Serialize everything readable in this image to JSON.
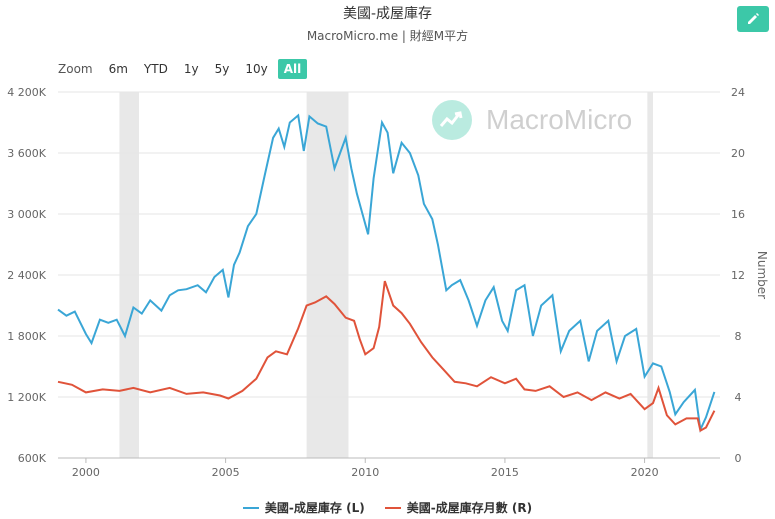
{
  "title": "美國-成屋庫存",
  "subtitle": "MacroMicro.me | 財經M平方",
  "watermark": "MacroMicro",
  "zoom": {
    "label": "Zoom",
    "buttons": [
      "6m",
      "YTD",
      "1y",
      "5y",
      "10y",
      "All"
    ],
    "active": "All"
  },
  "colors": {
    "left_series": "#3aa6d6",
    "right_series": "#e0533a",
    "accent": "#3cc8a8",
    "recession": "#e8e8e8"
  },
  "chart_data": {
    "type": "line",
    "title": "美國-成屋庫存",
    "left_axis": {
      "ticks": [
        "600K",
        "1 200K",
        "1 800K",
        "2 400K",
        "3 000K",
        "3 600K",
        "4 200K"
      ],
      "values": [
        600,
        1200,
        1800,
        2400,
        3000,
        3600,
        4200
      ],
      "range": [
        600,
        4200
      ],
      "unit": "K"
    },
    "right_axis": {
      "ticks": [
        "0",
        "4",
        "8",
        "12",
        "16",
        "20",
        "24"
      ],
      "values": [
        0,
        4,
        8,
        12,
        16,
        20,
        24
      ],
      "range": [
        0,
        24
      ],
      "label": "Number"
    },
    "x_axis": {
      "ticks": [
        "2000",
        "2005",
        "2010",
        "2015",
        "2020"
      ],
      "values": [
        2000,
        2005,
        2010,
        2015,
        2020
      ],
      "range": [
        1999,
        2022.7
      ]
    },
    "recessions": [
      [
        2001.2,
        2001.9
      ],
      [
        2007.9,
        2009.4
      ],
      [
        2020.1,
        2020.3
      ]
    ],
    "series": [
      {
        "name": "美國-成屋庫存 (L)",
        "axis": "left",
        "points": [
          [
            1999.0,
            2060
          ],
          [
            1999.3,
            2000
          ],
          [
            1999.6,
            2040
          ],
          [
            2000.0,
            1820
          ],
          [
            2000.2,
            1730
          ],
          [
            2000.5,
            1960
          ],
          [
            2000.8,
            1930
          ],
          [
            2001.1,
            1960
          ],
          [
            2001.4,
            1800
          ],
          [
            2001.7,
            2080
          ],
          [
            2002.0,
            2020
          ],
          [
            2002.3,
            2150
          ],
          [
            2002.7,
            2050
          ],
          [
            2003.0,
            2200
          ],
          [
            2003.3,
            2250
          ],
          [
            2003.6,
            2260
          ],
          [
            2004.0,
            2300
          ],
          [
            2004.3,
            2230
          ],
          [
            2004.6,
            2380
          ],
          [
            2004.9,
            2450
          ],
          [
            2005.1,
            2180
          ],
          [
            2005.3,
            2500
          ],
          [
            2005.5,
            2620
          ],
          [
            2005.8,
            2880
          ],
          [
            2006.1,
            3000
          ],
          [
            2006.4,
            3380
          ],
          [
            2006.7,
            3750
          ],
          [
            2006.9,
            3840
          ],
          [
            2007.1,
            3660
          ],
          [
            2007.3,
            3900
          ],
          [
            2007.6,
            3970
          ],
          [
            2007.8,
            3620
          ],
          [
            2008.0,
            3960
          ],
          [
            2008.3,
            3890
          ],
          [
            2008.6,
            3860
          ],
          [
            2008.9,
            3450
          ],
          [
            2009.1,
            3600
          ],
          [
            2009.3,
            3750
          ],
          [
            2009.5,
            3450
          ],
          [
            2009.7,
            3200
          ],
          [
            2009.9,
            3000
          ],
          [
            2010.1,
            2800
          ],
          [
            2010.3,
            3350
          ],
          [
            2010.6,
            3900
          ],
          [
            2010.8,
            3800
          ],
          [
            2011.0,
            3400
          ],
          [
            2011.3,
            3700
          ],
          [
            2011.6,
            3600
          ],
          [
            2011.9,
            3380
          ],
          [
            2012.1,
            3100
          ],
          [
            2012.4,
            2950
          ],
          [
            2012.6,
            2700
          ],
          [
            2012.9,
            2250
          ],
          [
            2013.1,
            2300
          ],
          [
            2013.4,
            2350
          ],
          [
            2013.7,
            2150
          ],
          [
            2014.0,
            1900
          ],
          [
            2014.3,
            2150
          ],
          [
            2014.6,
            2280
          ],
          [
            2014.9,
            1950
          ],
          [
            2015.1,
            1850
          ],
          [
            2015.4,
            2250
          ],
          [
            2015.7,
            2300
          ],
          [
            2016.0,
            1800
          ],
          [
            2016.3,
            2100
          ],
          [
            2016.7,
            2200
          ],
          [
            2017.0,
            1650
          ],
          [
            2017.3,
            1850
          ],
          [
            2017.7,
            1950
          ],
          [
            2018.0,
            1550
          ],
          [
            2018.3,
            1850
          ],
          [
            2018.7,
            1950
          ],
          [
            2019.0,
            1550
          ],
          [
            2019.3,
            1800
          ],
          [
            2019.7,
            1870
          ],
          [
            2020.0,
            1400
          ],
          [
            2020.3,
            1530
          ],
          [
            2020.6,
            1500
          ],
          [
            2020.9,
            1250
          ],
          [
            2021.1,
            1030
          ],
          [
            2021.4,
            1150
          ],
          [
            2021.8,
            1270
          ],
          [
            2022.0,
            880
          ],
          [
            2022.2,
            1000
          ],
          [
            2022.5,
            1250
          ]
        ]
      },
      {
        "name": "美國-成屋庫存月數 (R)",
        "axis": "right",
        "points": [
          [
            1999.0,
            5.0
          ],
          [
            1999.5,
            4.8
          ],
          [
            2000.0,
            4.3
          ],
          [
            2000.6,
            4.5
          ],
          [
            2001.2,
            4.4
          ],
          [
            2001.7,
            4.6
          ],
          [
            2002.3,
            4.3
          ],
          [
            2003.0,
            4.6
          ],
          [
            2003.6,
            4.2
          ],
          [
            2004.2,
            4.3
          ],
          [
            2004.8,
            4.1
          ],
          [
            2005.1,
            3.9
          ],
          [
            2005.6,
            4.4
          ],
          [
            2006.1,
            5.2
          ],
          [
            2006.5,
            6.6
          ],
          [
            2006.8,
            7.0
          ],
          [
            2007.2,
            6.8
          ],
          [
            2007.6,
            8.5
          ],
          [
            2007.9,
            10.0
          ],
          [
            2008.2,
            10.2
          ],
          [
            2008.6,
            10.6
          ],
          [
            2008.9,
            10.1
          ],
          [
            2009.3,
            9.2
          ],
          [
            2009.6,
            9.0
          ],
          [
            2009.8,
            7.8
          ],
          [
            2010.0,
            6.8
          ],
          [
            2010.3,
            7.2
          ],
          [
            2010.5,
            8.6
          ],
          [
            2010.7,
            11.6
          ],
          [
            2011.0,
            10.0
          ],
          [
            2011.3,
            9.5
          ],
          [
            2011.6,
            8.8
          ],
          [
            2012.0,
            7.6
          ],
          [
            2012.4,
            6.6
          ],
          [
            2012.8,
            5.8
          ],
          [
            2013.2,
            5.0
          ],
          [
            2013.6,
            4.9
          ],
          [
            2014.0,
            4.7
          ],
          [
            2014.5,
            5.3
          ],
          [
            2015.0,
            4.9
          ],
          [
            2015.4,
            5.2
          ],
          [
            2015.7,
            4.5
          ],
          [
            2016.1,
            4.4
          ],
          [
            2016.6,
            4.7
          ],
          [
            2017.1,
            4.0
          ],
          [
            2017.6,
            4.3
          ],
          [
            2018.1,
            3.8
          ],
          [
            2018.6,
            4.3
          ],
          [
            2019.1,
            3.9
          ],
          [
            2019.5,
            4.2
          ],
          [
            2020.0,
            3.2
          ],
          [
            2020.3,
            3.6
          ],
          [
            2020.5,
            4.6
          ],
          [
            2020.8,
            2.8
          ],
          [
            2021.1,
            2.2
          ],
          [
            2021.5,
            2.6
          ],
          [
            2021.9,
            2.6
          ],
          [
            2022.0,
            1.8
          ],
          [
            2022.2,
            2.0
          ],
          [
            2022.5,
            3.1
          ]
        ]
      }
    ],
    "legend": [
      "美國-成屋庫存 (L)",
      "美國-成屋庫存月數 (R)"
    ],
    "legend_position": "bottom"
  }
}
